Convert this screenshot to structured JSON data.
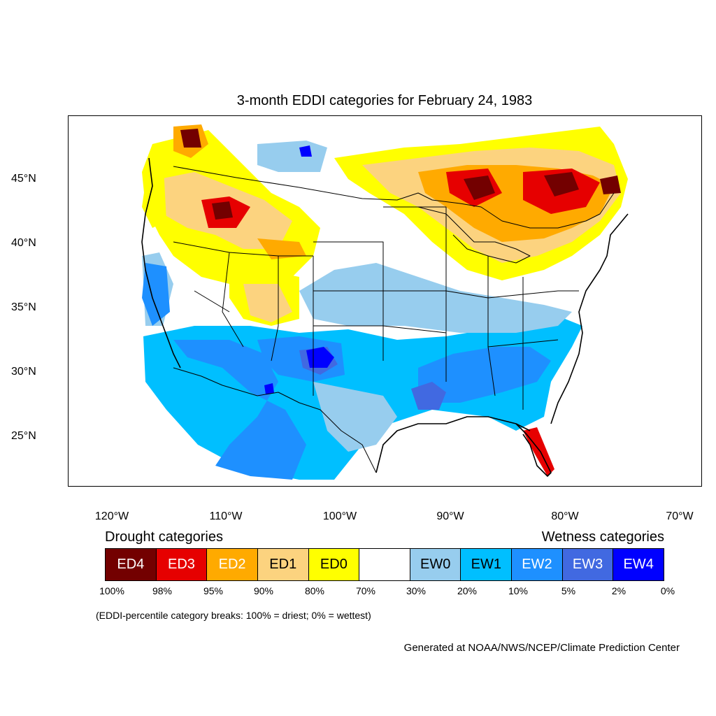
{
  "title": "3-month EDDI categories for February 24, 1983",
  "axes": {
    "y_ticks": [
      "45°N",
      "40°N",
      "35°N",
      "30°N",
      "25°N"
    ],
    "x_ticks": [
      "120°W",
      "110°W",
      "100°W",
      "90°W",
      "80°W",
      "70°W"
    ]
  },
  "legend": {
    "drought_heading": "Drought categories",
    "wetness_heading": "Wetness categories",
    "categories": [
      {
        "label": "ED4",
        "color": "#730000",
        "text_color": "#ffffff"
      },
      {
        "label": "ED3",
        "color": "#e60000",
        "text_color": "#ffffff"
      },
      {
        "label": "ED2",
        "color": "#ffaa00",
        "text_color": "#ffffff"
      },
      {
        "label": "ED1",
        "color": "#fcd37f",
        "text_color": "#000000"
      },
      {
        "label": "ED0",
        "color": "#ffff00",
        "text_color": "#000000"
      },
      {
        "label": "",
        "color": "#ffffff",
        "text_color": "#000000"
      },
      {
        "label": "EW0",
        "color": "#97cdee",
        "text_color": "#000000"
      },
      {
        "label": "EW1",
        "color": "#00bfff",
        "text_color": "#000000"
      },
      {
        "label": "EW2",
        "color": "#1e90ff",
        "text_color": "#ffffff"
      },
      {
        "label": "EW3",
        "color": "#4169e1",
        "text_color": "#ffffff"
      },
      {
        "label": "EW4",
        "color": "#0000ff",
        "text_color": "#ffffff"
      }
    ],
    "breaks": [
      "100%",
      "98%",
      "95%",
      "90%",
      "80%",
      "70%",
      "30%",
      "20%",
      "10%",
      "5%",
      "2%",
      "0%"
    ]
  },
  "note": "(EDDI-percentile category breaks: 100% = driest; 0% = wettest)",
  "credit": "Generated at NOAA/NWS/NCEP/Climate Prediction Center"
}
